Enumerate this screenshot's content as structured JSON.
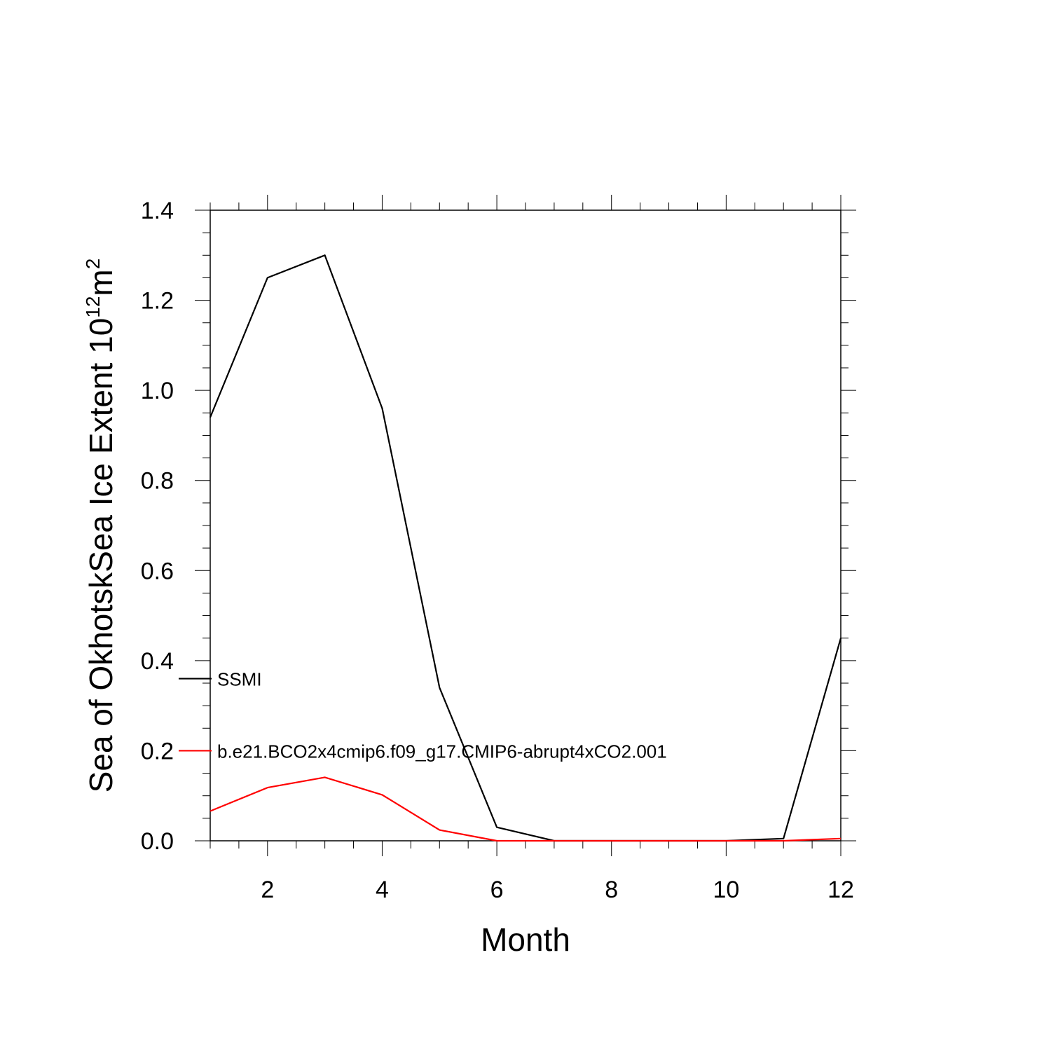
{
  "chart_data": {
    "type": "line",
    "xlabel": "Month",
    "ylabel": {
      "text": "Sea of OkhotskSea Ice Extent 10",
      "exponent": "12",
      "unit": "m",
      "unit_exponent": "2"
    },
    "xlim": [
      1,
      12
    ],
    "ylim": [
      0,
      1.4
    ],
    "x_ticks": [
      2,
      4,
      6,
      8,
      10,
      12
    ],
    "y_ticks": [
      "0.0",
      "0.2",
      "0.4",
      "0.6",
      "0.8",
      "1.0",
      "1.2",
      "1.4"
    ],
    "x": [
      1,
      2,
      3,
      4,
      5,
      6,
      7,
      8,
      9,
      10,
      11,
      12
    ],
    "series": [
      {
        "name": "SSMI",
        "color": "#000000",
        "values": [
          0.94,
          1.25,
          1.3,
          0.96,
          0.34,
          0.03,
          0.0,
          0.0,
          0.0,
          0.0,
          0.005,
          0.45
        ]
      },
      {
        "name": "b.e21.BCO2x4cmip6.f09_g17.CMIP6-abrupt4xCO2.001",
        "color": "#ff0000",
        "values": [
          0.066,
          0.118,
          0.141,
          0.102,
          0.024,
          0.0,
          0.0,
          0.0,
          0.0,
          0.0,
          0.0,
          0.005
        ]
      }
    ],
    "grid": false,
    "legend_position": "inside-left"
  }
}
